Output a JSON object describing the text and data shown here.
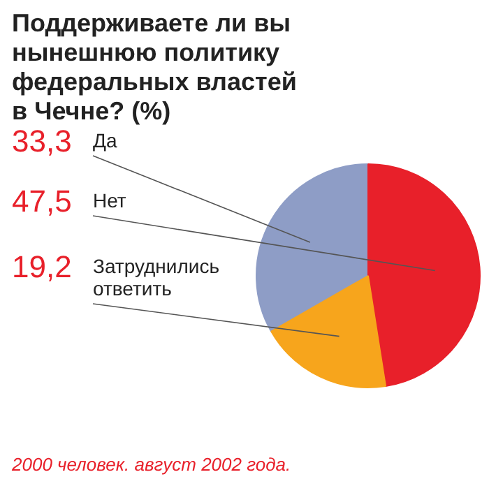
{
  "chart_data": {
    "type": "pie",
    "title": "Поддерживаете ли вы нынешнюю политику федеральных властей в Чечне? (%)",
    "categories": [
      "Да",
      "Нет",
      "Затруднились ответить"
    ],
    "values": [
      33.3,
      47.5,
      19.2
    ],
    "value_labels": [
      "33,3",
      "47,5",
      "19,2"
    ],
    "colors": [
      "#8e9dc6",
      "#e8202a",
      "#f7a51c"
    ],
    "annotations": [
      "2000 человек. август 2002 года."
    ]
  }
}
